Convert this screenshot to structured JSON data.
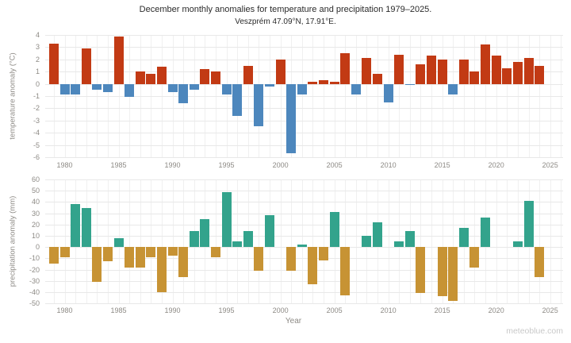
{
  "title": "December monthly anomalies for temperature and precipitation 1979–2025.",
  "subtitle": "Veszprém 47.09°N, 17.91°E.",
  "xlabel": "Year",
  "watermark": "meteoblue.com",
  "chart_data": [
    {
      "type": "bar",
      "name": "temperature",
      "ylabel": "temperature anomaly (°C)",
      "ylim": [
        -6,
        4
      ],
      "ytick_step": 1,
      "xlim": [
        1978.2,
        2026.2
      ],
      "xticklabels": [
        1980,
        1985,
        1990,
        1995,
        2000,
        2005,
        2010,
        2015,
        2020,
        2025
      ],
      "grid": true,
      "legend": "none",
      "pos_color": "#c23a14",
      "neg_color": "#4d87bd",
      "x": [
        1979,
        1980,
        1981,
        1982,
        1983,
        1984,
        1985,
        1986,
        1987,
        1988,
        1989,
        1990,
        1991,
        1992,
        1993,
        1994,
        1995,
        1996,
        1997,
        1998,
        1999,
        2000,
        2001,
        2002,
        2003,
        2004,
        2005,
        2006,
        2007,
        2008,
        2009,
        2010,
        2011,
        2012,
        2013,
        2014,
        2015,
        2016,
        2017,
        2018,
        2019,
        2020,
        2021,
        2022,
        2023,
        2024
      ],
      "values": [
        3.3,
        -0.9,
        -0.9,
        2.9,
        -0.5,
        -0.7,
        3.9,
        -1.1,
        1.0,
        0.8,
        1.4,
        -0.7,
        -1.6,
        -0.5,
        1.2,
        1.0,
        -0.9,
        -2.6,
        1.5,
        -3.5,
        -0.2,
        2.0,
        -5.7,
        -0.9,
        0.2,
        0.3,
        0.2,
        2.5,
        -0.9,
        2.1,
        0.8,
        -1.5,
        2.4,
        -0.1,
        1.6,
        2.3,
        2.0,
        -0.9,
        2.0,
        1.0,
        3.2,
        2.3,
        1.3,
        1.8,
        2.1,
        1.5
      ]
    },
    {
      "type": "bar",
      "name": "precipitation",
      "ylabel": "precipitation anomaly (mm)",
      "ylim": [
        -50,
        60
      ],
      "ytick_step": 10,
      "xlim": [
        1978.2,
        2026.2
      ],
      "xticklabels": [
        1980,
        1985,
        1990,
        1995,
        2000,
        2005,
        2010,
        2015,
        2020,
        2025
      ],
      "grid": true,
      "legend": "none",
      "pos_color": "#33a38c",
      "neg_color": "#c79334",
      "x": [
        1979,
        1980,
        1981,
        1982,
        1983,
        1984,
        1985,
        1986,
        1987,
        1988,
        1989,
        1990,
        1991,
        1992,
        1993,
        1994,
        1995,
        1996,
        1997,
        1998,
        1999,
        2000,
        2001,
        2002,
        2003,
        2004,
        2005,
        2006,
        2007,
        2008,
        2009,
        2010,
        2011,
        2012,
        2013,
        2014,
        2015,
        2016,
        2017,
        2018,
        2019,
        2020,
        2021,
        2022,
        2023,
        2024
      ],
      "values": [
        -15,
        -9,
        38,
        35,
        -31,
        -13,
        8,
        -18,
        -18,
        -9,
        -40,
        -8,
        -27,
        14,
        25,
        -9,
        49,
        5,
        14,
        -21,
        28,
        0,
        -21,
        2,
        -33,
        -12,
        31,
        -43,
        0,
        10,
        22,
        0,
        5,
        14,
        -41,
        0,
        -44,
        -48,
        17,
        -18,
        26,
        0,
        0,
        5,
        41,
        -27
      ]
    }
  ]
}
